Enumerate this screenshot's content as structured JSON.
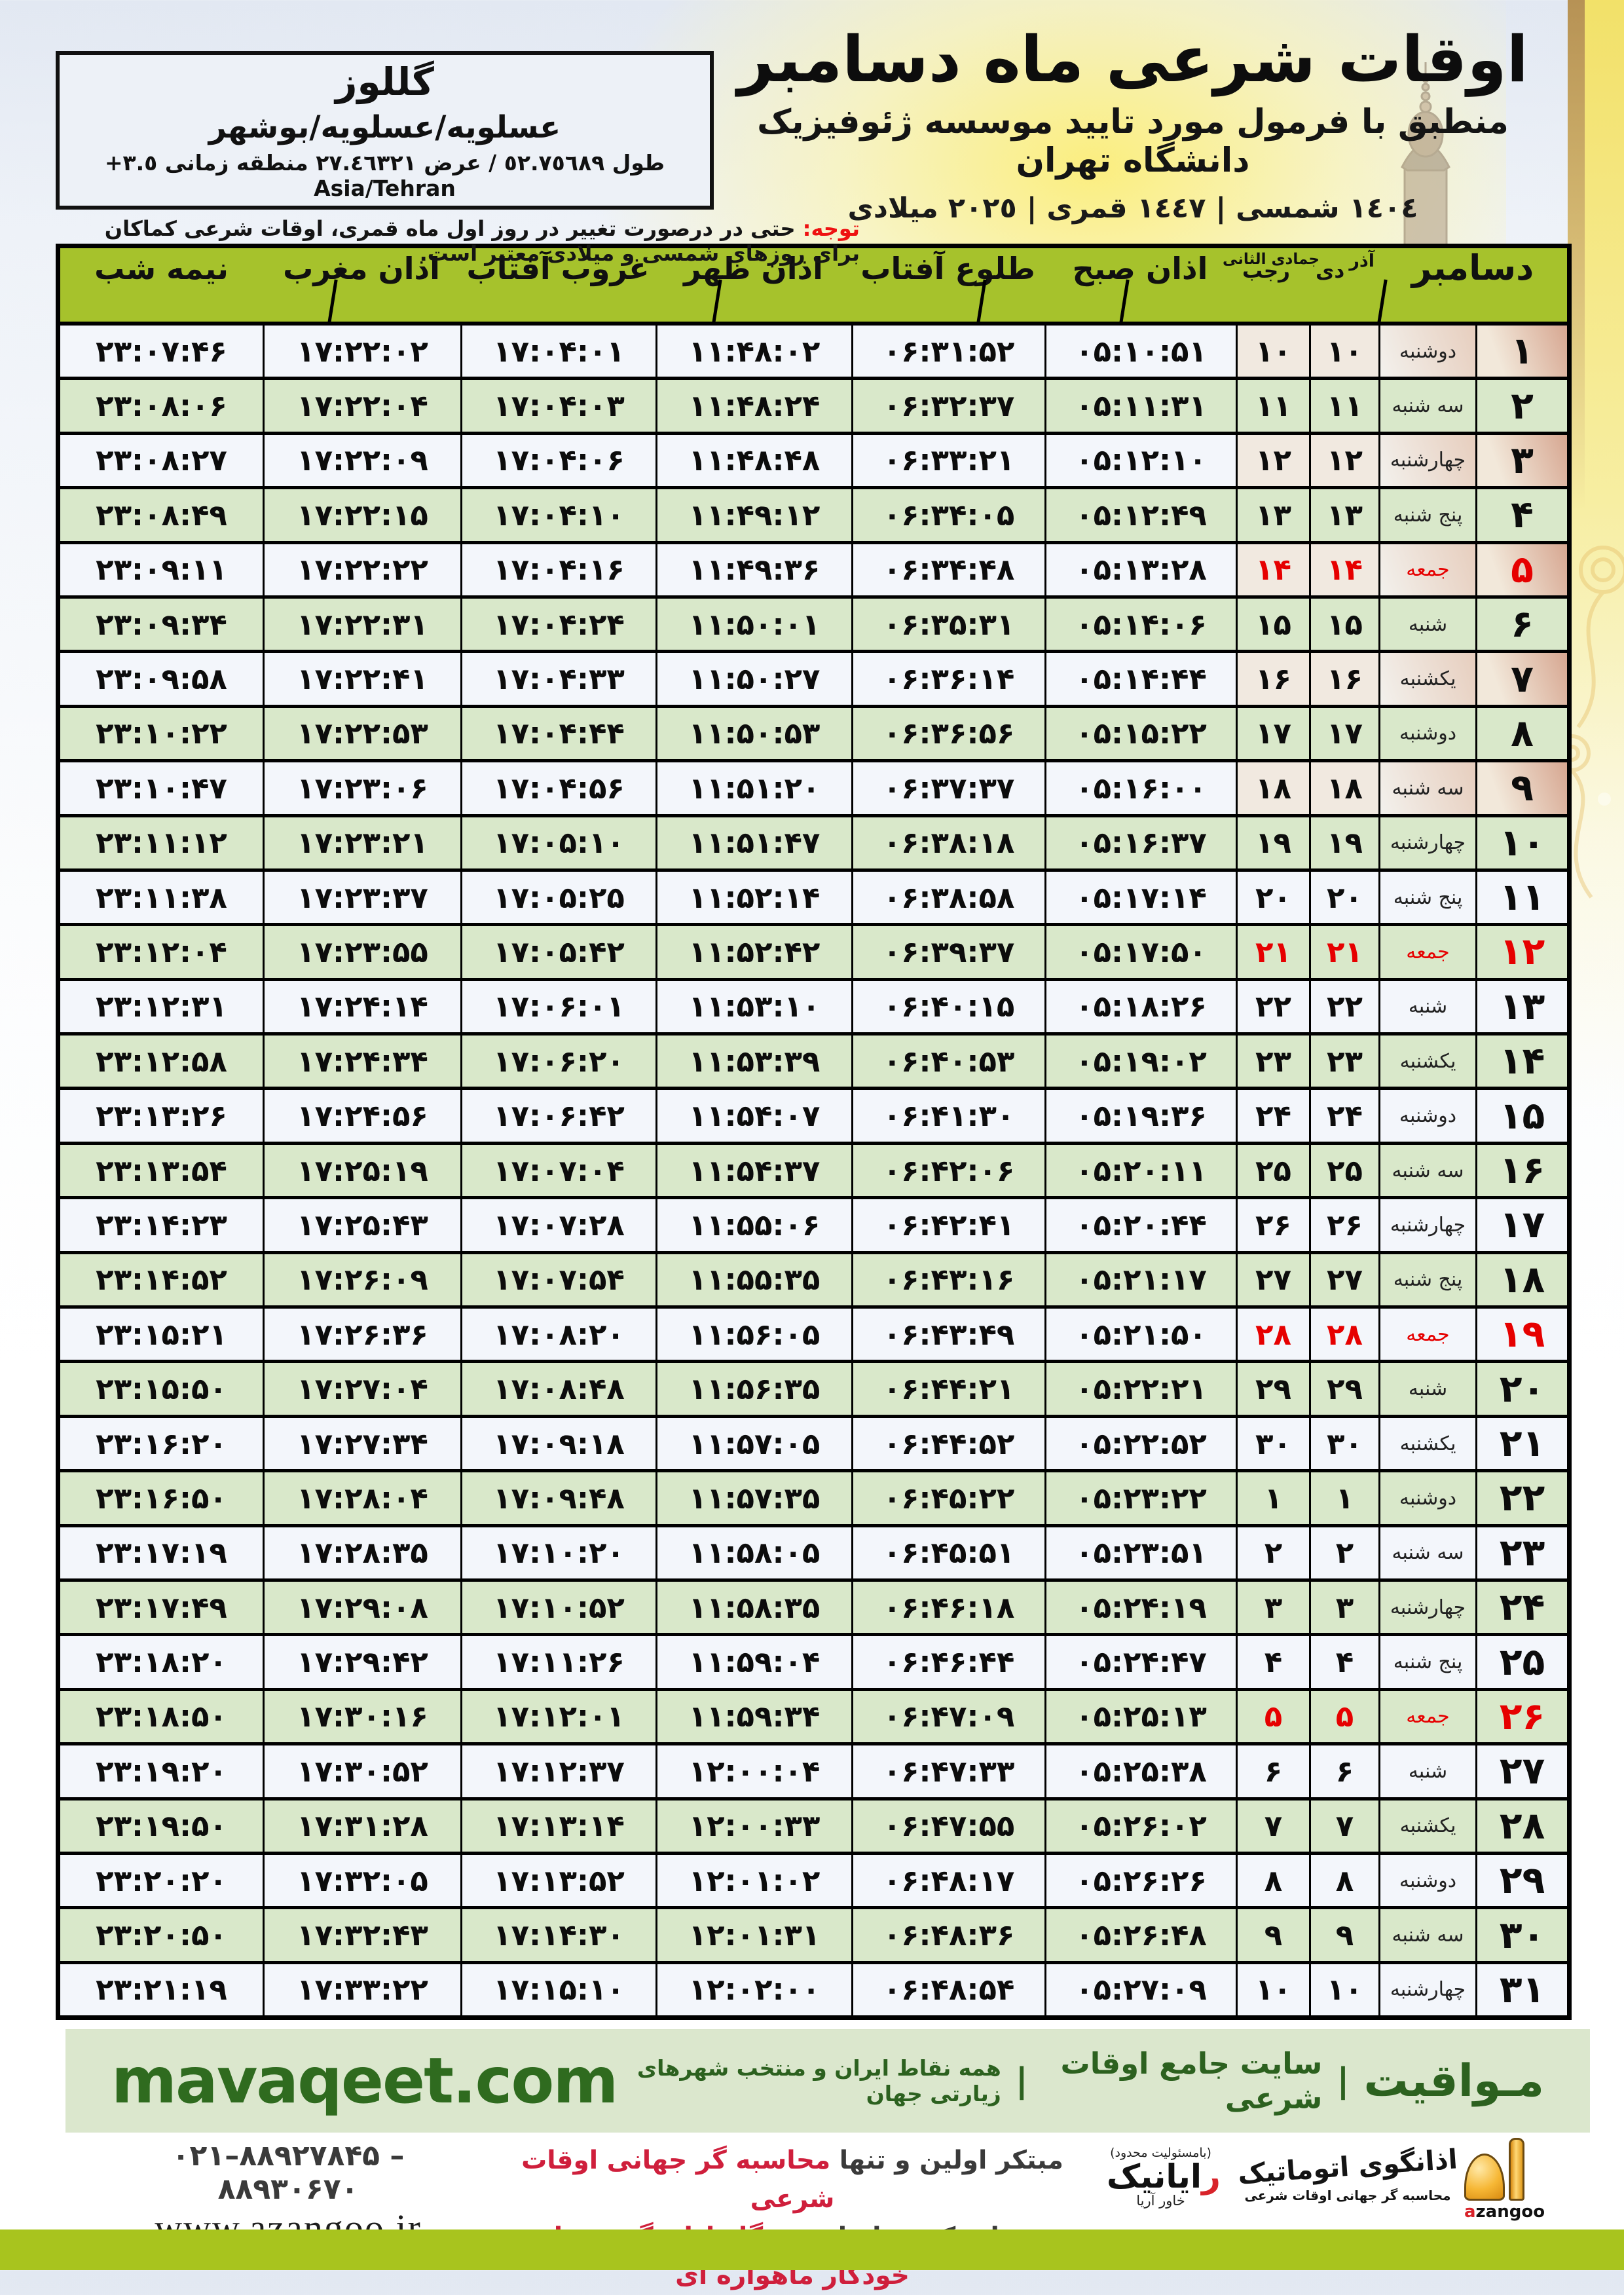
{
  "colors": {
    "header_green": "#a6c22c",
    "row_green": "#d9e8ca",
    "row_light": "#f3f6fb",
    "friday_red": "#e60000",
    "footer_band_bg": "#dbe7cd",
    "footer_green": "#2f6b1f",
    "slogan_red": "#cf1f3c",
    "bottom_bar_green": "#a8c41e",
    "notice_red": "#ee1111"
  },
  "header": {
    "title": "اوقات شرعی ماه دسامبر",
    "subtitle": "منطبق با فرمول مورد تایید موسسه ژئوفیزیک دانشگاه تهران",
    "years": "١٤٠٤ شمسی | ١٤٤٧ قمری | ٢٠٢٥ میلادی"
  },
  "location": {
    "name": "گللوز",
    "region": "عسلویه/عسلویه/بوشهر",
    "coords": "طول ٥٢.٧٥٦٨٩ / عرض ٢٧.٤٦٣٢١ منطقه زمانی",
    "utc_offset": "+٣.٥",
    "timezone": "Asia/Tehran"
  },
  "notice": {
    "label": "توجه:",
    "text": "حتی در درصورت تغییر در روز اول ماه قمری، اوقات شرعی کماکان برای روزهای شمسی و میلادی معتبر است."
  },
  "table": {
    "headers": {
      "december": "دسامبر",
      "jalali_top": "آذر",
      "jalali_bottom": "دی",
      "hijri_top": "جمادی الثانی",
      "hijri_bottom": "رجب",
      "fajr": "اذان صبح",
      "sunrise": "طلوع آفتاب",
      "dhuhr": "اذان ظهر",
      "sunset": "غروب آفتاب",
      "maghrib": "اذان مغرب",
      "midnight": "نیمه شب"
    },
    "rows": [
      {
        "n": 1,
        "day": "۱",
        "weekday": "دوشنبه",
        "jalali": "۱۰",
        "hijri": "۱۰",
        "fajr": "۰۵:۱۰:۵۱",
        "sunrise": "۰۶:۳۱:۵۲",
        "dhuhr": "۱۱:۴۸:۰۲",
        "sunset": "۱۷:۰۴:۰۱",
        "maghrib": "۱۷:۲۲:۰۲",
        "midnight": "۲۳:۰۷:۴۶",
        "friday": false
      },
      {
        "n": 2,
        "day": "۲",
        "weekday": "سه شنبه",
        "jalali": "۱۱",
        "hijri": "۱۱",
        "fajr": "۰۵:۱۱:۳۱",
        "sunrise": "۰۶:۳۲:۳۷",
        "dhuhr": "۱۱:۴۸:۲۴",
        "sunset": "۱۷:۰۴:۰۳",
        "maghrib": "۱۷:۲۲:۰۴",
        "midnight": "۲۳:۰۸:۰۶",
        "friday": false
      },
      {
        "n": 3,
        "day": "۳",
        "weekday": "چهارشنبه",
        "jalali": "۱۲",
        "hijri": "۱۲",
        "fajr": "۰۵:۱۲:۱۰",
        "sunrise": "۰۶:۳۳:۲۱",
        "dhuhr": "۱۱:۴۸:۴۸",
        "sunset": "۱۷:۰۴:۰۶",
        "maghrib": "۱۷:۲۲:۰۹",
        "midnight": "۲۳:۰۸:۲۷",
        "friday": false
      },
      {
        "n": 4,
        "day": "۴",
        "weekday": "پنج شنبه",
        "jalali": "۱۳",
        "hijri": "۱۳",
        "fajr": "۰۵:۱۲:۴۹",
        "sunrise": "۰۶:۳۴:۰۵",
        "dhuhr": "۱۱:۴۹:۱۲",
        "sunset": "۱۷:۰۴:۱۰",
        "maghrib": "۱۷:۲۲:۱۵",
        "midnight": "۲۳:۰۸:۴۹",
        "friday": false
      },
      {
        "n": 5,
        "day": "۵",
        "weekday": "جمعه",
        "jalali": "۱۴",
        "hijri": "۱۴",
        "fajr": "۰۵:۱۳:۲۸",
        "sunrise": "۰۶:۳۴:۴۸",
        "dhuhr": "۱۱:۴۹:۳۶",
        "sunset": "۱۷:۰۴:۱۶",
        "maghrib": "۱۷:۲۲:۲۲",
        "midnight": "۲۳:۰۹:۱۱",
        "friday": true
      },
      {
        "n": 6,
        "day": "۶",
        "weekday": "شنبه",
        "jalali": "۱۵",
        "hijri": "۱۵",
        "fajr": "۰۵:۱۴:۰۶",
        "sunrise": "۰۶:۳۵:۳۱",
        "dhuhr": "۱۱:۵۰:۰۱",
        "sunset": "۱۷:۰۴:۲۴",
        "maghrib": "۱۷:۲۲:۳۱",
        "midnight": "۲۳:۰۹:۳۴",
        "friday": false
      },
      {
        "n": 7,
        "day": "۷",
        "weekday": "یکشنبه",
        "jalali": "۱۶",
        "hijri": "۱۶",
        "fajr": "۰۵:۱۴:۴۴",
        "sunrise": "۰۶:۳۶:۱۴",
        "dhuhr": "۱۱:۵۰:۲۷",
        "sunset": "۱۷:۰۴:۳۳",
        "maghrib": "۱۷:۲۲:۴۱",
        "midnight": "۲۳:۰۹:۵۸",
        "friday": false
      },
      {
        "n": 8,
        "day": "۸",
        "weekday": "دوشنبه",
        "jalali": "۱۷",
        "hijri": "۱۷",
        "fajr": "۰۵:۱۵:۲۲",
        "sunrise": "۰۶:۳۶:۵۶",
        "dhuhr": "۱۱:۵۰:۵۳",
        "sunset": "۱۷:۰۴:۴۴",
        "maghrib": "۱۷:۲۲:۵۳",
        "midnight": "۲۳:۱۰:۲۲",
        "friday": false
      },
      {
        "n": 9,
        "day": "۹",
        "weekday": "سه شنبه",
        "jalali": "۱۸",
        "hijri": "۱۸",
        "fajr": "۰۵:۱۶:۰۰",
        "sunrise": "۰۶:۳۷:۳۷",
        "dhuhr": "۱۱:۵۱:۲۰",
        "sunset": "۱۷:۰۴:۵۶",
        "maghrib": "۱۷:۲۳:۰۶",
        "midnight": "۲۳:۱۰:۴۷",
        "friday": false
      },
      {
        "n": 10,
        "day": "۱۰",
        "weekday": "چهارشنبه",
        "jalali": "۱۹",
        "hijri": "۱۹",
        "fajr": "۰۵:۱۶:۳۷",
        "sunrise": "۰۶:۳۸:۱۸",
        "dhuhr": "۱۱:۵۱:۴۷",
        "sunset": "۱۷:۰۵:۱۰",
        "maghrib": "۱۷:۲۳:۲۱",
        "midnight": "۲۳:۱۱:۱۲",
        "friday": false
      },
      {
        "n": 11,
        "day": "۱۱",
        "weekday": "پنج شنبه",
        "jalali": "۲۰",
        "hijri": "۲۰",
        "fajr": "۰۵:۱۷:۱۴",
        "sunrise": "۰۶:۳۸:۵۸",
        "dhuhr": "۱۱:۵۲:۱۴",
        "sunset": "۱۷:۰۵:۲۵",
        "maghrib": "۱۷:۲۳:۳۷",
        "midnight": "۲۳:۱۱:۳۸",
        "friday": false
      },
      {
        "n": 12,
        "day": "۱۲",
        "weekday": "جمعه",
        "jalali": "۲۱",
        "hijri": "۲۱",
        "fajr": "۰۵:۱۷:۵۰",
        "sunrise": "۰۶:۳۹:۳۷",
        "dhuhr": "۱۱:۵۲:۴۲",
        "sunset": "۱۷:۰۵:۴۲",
        "maghrib": "۱۷:۲۳:۵۵",
        "midnight": "۲۳:۱۲:۰۴",
        "friday": true
      },
      {
        "n": 13,
        "day": "۱۳",
        "weekday": "شنبه",
        "jalali": "۲۲",
        "hijri": "۲۲",
        "fajr": "۰۵:۱۸:۲۶",
        "sunrise": "۰۶:۴۰:۱۵",
        "dhuhr": "۱۱:۵۳:۱۰",
        "sunset": "۱۷:۰۶:۰۱",
        "maghrib": "۱۷:۲۴:۱۴",
        "midnight": "۲۳:۱۲:۳۱",
        "friday": false
      },
      {
        "n": 14,
        "day": "۱۴",
        "weekday": "یکشنبه",
        "jalali": "۲۳",
        "hijri": "۲۳",
        "fajr": "۰۵:۱۹:۰۲",
        "sunrise": "۰۶:۴۰:۵۳",
        "dhuhr": "۱۱:۵۳:۳۹",
        "sunset": "۱۷:۰۶:۲۰",
        "maghrib": "۱۷:۲۴:۳۴",
        "midnight": "۲۳:۱۲:۵۸",
        "friday": false
      },
      {
        "n": 15,
        "day": "۱۵",
        "weekday": "دوشنبه",
        "jalali": "۲۴",
        "hijri": "۲۴",
        "fajr": "۰۵:۱۹:۳۶",
        "sunrise": "۰۶:۴۱:۳۰",
        "dhuhr": "۱۱:۵۴:۰۷",
        "sunset": "۱۷:۰۶:۴۲",
        "maghrib": "۱۷:۲۴:۵۶",
        "midnight": "۲۳:۱۳:۲۶",
        "friday": false
      },
      {
        "n": 16,
        "day": "۱۶",
        "weekday": "سه شنبه",
        "jalali": "۲۵",
        "hijri": "۲۵",
        "fajr": "۰۵:۲۰:۱۱",
        "sunrise": "۰۶:۴۲:۰۶",
        "dhuhr": "۱۱:۵۴:۳۷",
        "sunset": "۱۷:۰۷:۰۴",
        "maghrib": "۱۷:۲۵:۱۹",
        "midnight": "۲۳:۱۳:۵۴",
        "friday": false
      },
      {
        "n": 17,
        "day": "۱۷",
        "weekday": "چهارشنبه",
        "jalali": "۲۶",
        "hijri": "۲۶",
        "fajr": "۰۵:۲۰:۴۴",
        "sunrise": "۰۶:۴۲:۴۱",
        "dhuhr": "۱۱:۵۵:۰۶",
        "sunset": "۱۷:۰۷:۲۸",
        "maghrib": "۱۷:۲۵:۴۳",
        "midnight": "۲۳:۱۴:۲۳",
        "friday": false
      },
      {
        "n": 18,
        "day": "۱۸",
        "weekday": "پنج شنبه",
        "jalali": "۲۷",
        "hijri": "۲۷",
        "fajr": "۰۵:۲۱:۱۷",
        "sunrise": "۰۶:۴۳:۱۶",
        "dhuhr": "۱۱:۵۵:۳۵",
        "sunset": "۱۷:۰۷:۵۴",
        "maghrib": "۱۷:۲۶:۰۹",
        "midnight": "۲۳:۱۴:۵۲",
        "friday": false
      },
      {
        "n": 19,
        "day": "۱۹",
        "weekday": "جمعه",
        "jalali": "۲۸",
        "hijri": "۲۸",
        "fajr": "۰۵:۲۱:۵۰",
        "sunrise": "۰۶:۴۳:۴۹",
        "dhuhr": "۱۱:۵۶:۰۵",
        "sunset": "۱۷:۰۸:۲۰",
        "maghrib": "۱۷:۲۶:۳۶",
        "midnight": "۲۳:۱۵:۲۱",
        "friday": true
      },
      {
        "n": 20,
        "day": "۲۰",
        "weekday": "شنبه",
        "jalali": "۲۹",
        "hijri": "۲۹",
        "fajr": "۰۵:۲۲:۲۱",
        "sunrise": "۰۶:۴۴:۲۱",
        "dhuhr": "۱۱:۵۶:۳۵",
        "sunset": "۱۷:۰۸:۴۸",
        "maghrib": "۱۷:۲۷:۰۴",
        "midnight": "۲۳:۱۵:۵۰",
        "friday": false
      },
      {
        "n": 21,
        "day": "۲۱",
        "weekday": "یکشنبه",
        "jalali": "۳۰",
        "hijri": "۳۰",
        "fajr": "۰۵:۲۲:۵۲",
        "sunrise": "۰۶:۴۴:۵۲",
        "dhuhr": "۱۱:۵۷:۰۵",
        "sunset": "۱۷:۰۹:۱۸",
        "maghrib": "۱۷:۲۷:۳۴",
        "midnight": "۲۳:۱۶:۲۰",
        "friday": false
      },
      {
        "n": 22,
        "day": "۲۲",
        "weekday": "دوشنبه",
        "jalali": "۱",
        "hijri": "۱",
        "fajr": "۰۵:۲۳:۲۲",
        "sunrise": "۰۶:۴۵:۲۲",
        "dhuhr": "۱۱:۵۷:۳۵",
        "sunset": "۱۷:۰۹:۴۸",
        "maghrib": "۱۷:۲۸:۰۴",
        "midnight": "۲۳:۱۶:۵۰",
        "friday": false
      },
      {
        "n": 23,
        "day": "۲۳",
        "weekday": "سه شنبه",
        "jalali": "۲",
        "hijri": "۲",
        "fajr": "۰۵:۲۳:۵۱",
        "sunrise": "۰۶:۴۵:۵۱",
        "dhuhr": "۱۱:۵۸:۰۵",
        "sunset": "۱۷:۱۰:۲۰",
        "maghrib": "۱۷:۲۸:۳۵",
        "midnight": "۲۳:۱۷:۱۹",
        "friday": false
      },
      {
        "n": 24,
        "day": "۲۴",
        "weekday": "چهارشنبه",
        "jalali": "۳",
        "hijri": "۳",
        "fajr": "۰۵:۲۴:۱۹",
        "sunrise": "۰۶:۴۶:۱۸",
        "dhuhr": "۱۱:۵۸:۳۵",
        "sunset": "۱۷:۱۰:۵۲",
        "maghrib": "۱۷:۲۹:۰۸",
        "midnight": "۲۳:۱۷:۴۹",
        "friday": false
      },
      {
        "n": 25,
        "day": "۲۵",
        "weekday": "پنج شنبه",
        "jalali": "۴",
        "hijri": "۴",
        "fajr": "۰۵:۲۴:۴۷",
        "sunrise": "۰۶:۴۶:۴۴",
        "dhuhr": "۱۱:۵۹:۰۴",
        "sunset": "۱۷:۱۱:۲۶",
        "maghrib": "۱۷:۲۹:۴۲",
        "midnight": "۲۳:۱۸:۲۰",
        "friday": false
      },
      {
        "n": 26,
        "day": "۲۶",
        "weekday": "جمعه",
        "jalali": "۵",
        "hijri": "۵",
        "fajr": "۰۵:۲۵:۱۳",
        "sunrise": "۰۶:۴۷:۰۹",
        "dhuhr": "۱۱:۵۹:۳۴",
        "sunset": "۱۷:۱۲:۰۱",
        "maghrib": "۱۷:۳۰:۱۶",
        "midnight": "۲۳:۱۸:۵۰",
        "friday": true
      },
      {
        "n": 27,
        "day": "۲۷",
        "weekday": "شنبه",
        "jalali": "۶",
        "hijri": "۶",
        "fajr": "۰۵:۲۵:۳۸",
        "sunrise": "۰۶:۴۷:۳۳",
        "dhuhr": "۱۲:۰۰:۰۴",
        "sunset": "۱۷:۱۲:۳۷",
        "maghrib": "۱۷:۳۰:۵۲",
        "midnight": "۲۳:۱۹:۲۰",
        "friday": false
      },
      {
        "n": 28,
        "day": "۲۸",
        "weekday": "یکشنبه",
        "jalali": "۷",
        "hijri": "۷",
        "fajr": "۰۵:۲۶:۰۲",
        "sunrise": "۰۶:۴۷:۵۵",
        "dhuhr": "۱۲:۰۰:۳۳",
        "sunset": "۱۷:۱۳:۱۴",
        "maghrib": "۱۷:۳۱:۲۸",
        "midnight": "۲۳:۱۹:۵۰",
        "friday": false
      },
      {
        "n": 29,
        "day": "۲۹",
        "weekday": "دوشنبه",
        "jalali": "۸",
        "hijri": "۸",
        "fajr": "۰۵:۲۶:۲۶",
        "sunrise": "۰۶:۴۸:۱۷",
        "dhuhr": "۱۲:۰۱:۰۲",
        "sunset": "۱۷:۱۳:۵۲",
        "maghrib": "۱۷:۳۲:۰۵",
        "midnight": "۲۳:۲۰:۲۰",
        "friday": false
      },
      {
        "n": 30,
        "day": "۳۰",
        "weekday": "سه شنبه",
        "jalali": "۹",
        "hijri": "۹",
        "fajr": "۰۵:۲۶:۴۸",
        "sunrise": "۰۶:۴۸:۳۶",
        "dhuhr": "۱۲:۰۱:۳۱",
        "sunset": "۱۷:۱۴:۳۰",
        "maghrib": "۱۷:۳۲:۴۳",
        "midnight": "۲۳:۲۰:۵۰",
        "friday": false
      },
      {
        "n": 31,
        "day": "۳۱",
        "weekday": "چهارشنبه",
        "jalali": "۱۰",
        "hijri": "۱۰",
        "fajr": "۰۵:۲۷:۰۹",
        "sunrise": "۰۶:۴۸:۵۴",
        "dhuhr": "۱۲:۰۲:۰۰",
        "sunset": "۱۷:۱۵:۱۰",
        "maghrib": "۱۷:۳۳:۲۲",
        "midnight": "۲۳:۲۱:۱۹",
        "friday": false
      }
    ]
  },
  "footer": {
    "brand_fa": "مـواقیت",
    "site_desc": "سایت جامع اوقات شرعی",
    "coverage": "همه نقاط ایران و منتخب شهرهای زیارتی جهان",
    "website": "mavaqeet.com",
    "phones": "۰۲۱–۸۸۹۲۷۸۴۵ – ۸۸۹۳۰۶۷۰",
    "web_address": "www.azangoo.ir",
    "slogan_dark_1": "مبتکر اولین و تنها",
    "slogan_red_1": "محاسبه گر جهانی اوقات شرعی",
    "slogan_dark_2": "و تولید کننده انواع",
    "slogan_red_2": "دستگاه اذان گوی تمام خودکار ماهواره ای",
    "rayanik_resp": "(بامسئولیت محدود)",
    "rayanik_r": "ر",
    "rayanik_name": "ایانیک",
    "rayanik_sub": "خاور آریا",
    "azangoo_fa": "اذانگوی اتوماتیک",
    "azangoo_sub": "محاسبه گر جهانی اوقات شرعی",
    "azangoo_en_a": "a",
    "azangoo_en_rest": "zangoo"
  }
}
